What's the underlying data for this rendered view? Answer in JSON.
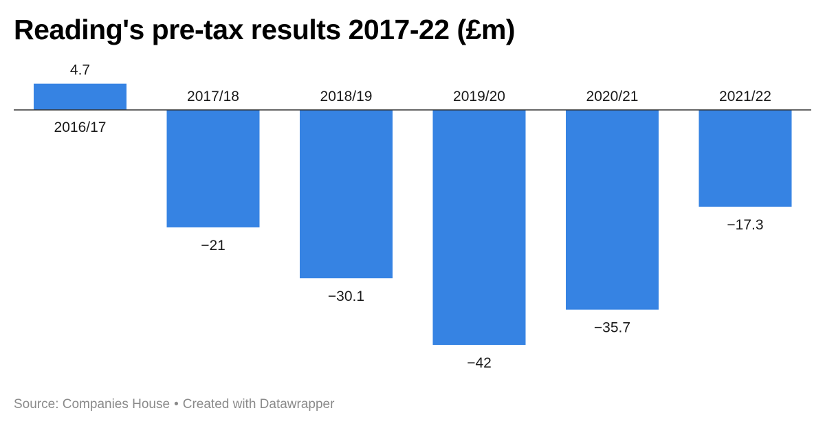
{
  "title": "Reading's pre-tax results 2017-22 (£m)",
  "footer": {
    "source": "Source: Companies House",
    "separator": "•",
    "credit": "Created with Datawrapper"
  },
  "colors": {
    "bar": "#3683e3",
    "baseline": "#333333",
    "text": "#1a1a1a",
    "footer": "#8a8a8a"
  },
  "chart_data": {
    "type": "bar",
    "title": "Reading's pre-tax results 2017-22 (£m)",
    "categories": [
      "2016/17",
      "2017/18",
      "2018/19",
      "2019/20",
      "2020/21",
      "2021/22"
    ],
    "values": [
      4.7,
      -21,
      -30.1,
      -42,
      -35.7,
      -17.3
    ],
    "value_labels": [
      "4.7",
      "−21",
      "−30.1",
      "−42",
      "−35.7",
      "−17.3"
    ],
    "xlabel": "",
    "ylabel": "",
    "ylim": [
      -42,
      4.7
    ],
    "grid": false,
    "legend": "none"
  }
}
